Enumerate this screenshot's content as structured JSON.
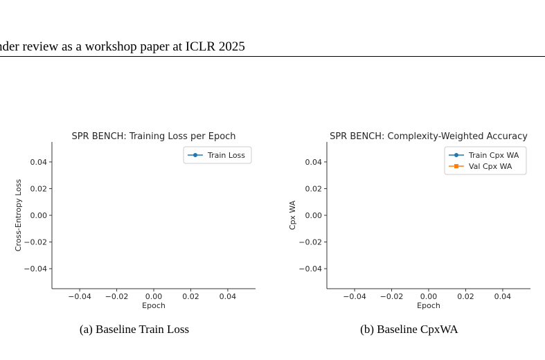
{
  "header": {
    "text": "nder review as a workshop paper at ICLR 2025"
  },
  "figure": {
    "captions": [
      "(a)  Baseline Train Loss",
      "(b)  Baseline CpxWA"
    ]
  },
  "chart_data": [
    {
      "type": "line",
      "title": "SPR BENCH: Training Loss per Epoch",
      "xlabel": "Epoch",
      "ylabel": "Cross-Entropy Loss",
      "xlim": [
        -0.055,
        0.055
      ],
      "ylim": [
        -0.055,
        0.055
      ],
      "xticks": [
        -0.04,
        -0.02,
        0.0,
        0.02,
        0.04
      ],
      "xtick_labels": [
        "−0.04",
        "−0.02",
        "0.00",
        "0.02",
        "0.04"
      ],
      "yticks": [
        0.04,
        0.02,
        0.0,
        -0.02,
        -0.04
      ],
      "ytick_labels": [
        "0.04",
        "0.02",
        "0.00",
        "−0.02",
        "−0.04"
      ],
      "grid": false,
      "legend_position": "top-right",
      "series": [
        {
          "name": "Train Loss",
          "x": [],
          "y": [],
          "color": "#1f77b4",
          "marker": "circle"
        }
      ]
    },
    {
      "type": "line",
      "title": "SPR BENCH: Complexity-Weighted Accuracy",
      "xlabel": "Epoch",
      "ylabel": "Cpx WA",
      "xlim": [
        -0.055,
        0.055
      ],
      "ylim": [
        -0.055,
        0.055
      ],
      "xticks": [
        -0.04,
        -0.02,
        0.0,
        0.02,
        0.04
      ],
      "xtick_labels": [
        "−0.04",
        "−0.02",
        "0.00",
        "0.02",
        "0.04"
      ],
      "yticks": [
        0.04,
        0.02,
        0.0,
        -0.02,
        -0.04
      ],
      "ytick_labels": [
        "0.04",
        "0.02",
        "0.00",
        "−0.02",
        "−0.04"
      ],
      "grid": false,
      "legend_position": "top-right",
      "series": [
        {
          "name": "Train Cpx WA",
          "x": [],
          "y": [],
          "color": "#1f77b4",
          "marker": "circle"
        },
        {
          "name": "Val Cpx WA",
          "x": [],
          "y": [],
          "color": "#ff7f0e",
          "marker": "square"
        }
      ]
    }
  ]
}
